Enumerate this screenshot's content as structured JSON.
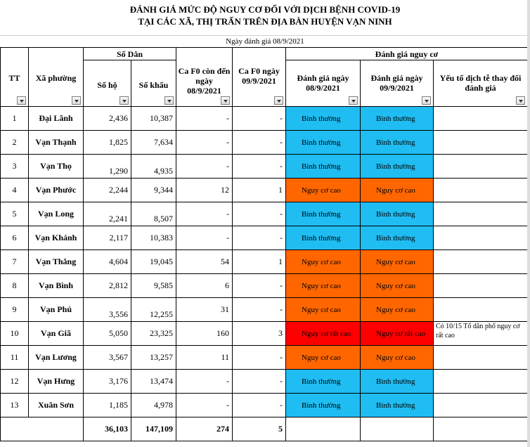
{
  "title_line1": "ĐÁNH GIÁ MỨC ĐỘ NGUY CƠ ĐỐI VỚI DỊCH BỆNH COVID-19",
  "title_line2": "TẠI CÁC XÃ, THỊ TRẤN TRÊN ĐỊA BÀN HUYỆN VẠN NINH",
  "assessment_date": "Ngày đánh giá 08/9/2021",
  "headers": {
    "tt": "TT",
    "xa_phuong": "Xã phường",
    "so_dan": "Số Dân",
    "so_ho": "Số hộ",
    "so_khau": "Số khẩu",
    "ca_f0_con_den": "Ca F0 còn đến ngày 08/9/2021",
    "ca_f0_ngay": "Ca F0 ngày 09/9/2021",
    "danh_gia_nguy_co": "Đánh giá nguy cơ",
    "danh_gia_0809": "Đánh giá ngày 08/9/2021",
    "danh_gia_0909": "Đánh giá ngày 09/9/2021",
    "yeu_to": "Yếu tố dịch tễ thay đổi đánh giá"
  },
  "colors": {
    "binh_thuong": "#1fbdf2",
    "nguy_co_cao": "#ff6600",
    "nguy_co_rat_cao": "#ff0000"
  },
  "rows": [
    {
      "tt": "1",
      "name": "Đại Lãnh",
      "ho": "2,436",
      "khau": "10,387",
      "f0_con": "-",
      "f0_ngay": "-",
      "d1": "Bình thường",
      "d2": "Bình thường",
      "level1": "binh_thuong",
      "level2": "binh_thuong",
      "note": ""
    },
    {
      "tt": "2",
      "name": "Vạn Thạnh",
      "ho": "1,825",
      "khau": "7,634",
      "f0_con": "-",
      "f0_ngay": "-",
      "d1": "Bình thường",
      "d2": "Bình thường",
      "level1": "binh_thuong",
      "level2": "binh_thuong",
      "note": ""
    },
    {
      "tt": "3",
      "name": "Vạn Thọ",
      "ho": "1,290",
      "khau": "4,935",
      "f0_con": "-",
      "f0_ngay": "-",
      "d1": "Bình thường",
      "d2": "Bình thường",
      "level1": "binh_thuong",
      "level2": "binh_thuong",
      "note": ""
    },
    {
      "tt": "4",
      "name": "Vạn Phước",
      "ho": "2,244",
      "khau": "9,344",
      "f0_con": "12",
      "f0_ngay": "1",
      "d1": "Nguy cơ cao",
      "d2": "Nguy cơ cao",
      "level1": "nguy_co_cao",
      "level2": "nguy_co_cao",
      "note": ""
    },
    {
      "tt": "5",
      "name": "Vạn Long",
      "ho": "2,241",
      "khau": "8,507",
      "f0_con": "-",
      "f0_ngay": "-",
      "d1": "Bình thường",
      "d2": "Bình thường",
      "level1": "binh_thuong",
      "level2": "binh_thuong",
      "note": ""
    },
    {
      "tt": "6",
      "name": "Vạn Khánh",
      "ho": "2,117",
      "khau": "10,383",
      "f0_con": "-",
      "f0_ngay": "-",
      "d1": "Bình thường",
      "d2": "Bình thường",
      "level1": "binh_thuong",
      "level2": "binh_thuong",
      "note": ""
    },
    {
      "tt": "7",
      "name": "Vạn Thắng",
      "ho": "4,604",
      "khau": "19,045",
      "f0_con": "54",
      "f0_ngay": "1",
      "d1": "Nguy cơ cao",
      "d2": "Nguy cơ cao",
      "level1": "nguy_co_cao",
      "level2": "nguy_co_cao",
      "note": ""
    },
    {
      "tt": "8",
      "name": "Vạn Bình",
      "ho": "2,812",
      "khau": "9,585",
      "f0_con": "6",
      "f0_ngay": "-",
      "d1": "Nguy cơ cao",
      "d2": "Nguy cơ cao",
      "level1": "nguy_co_cao",
      "level2": "nguy_co_cao",
      "note": ""
    },
    {
      "tt": "9",
      "name": "Vạn Phú",
      "ho": "3,556",
      "khau": "12,255",
      "f0_con": "31",
      "f0_ngay": "-",
      "d1": "Nguy cơ cao",
      "d2": "Nguy cơ cao",
      "level1": "nguy_co_cao",
      "level2": "nguy_co_cao",
      "note": ""
    },
    {
      "tt": "10",
      "name": "Vạn Giã",
      "ho": "5,050",
      "khau": "23,325",
      "f0_con": "160",
      "f0_ngay": "3",
      "d1": "Nguy cơ rất cao",
      "d2": "Nguy cơ rất cao",
      "level1": "nguy_co_rat_cao",
      "level2": "nguy_co_rat_cao",
      "note": "Có 10/15 Tổ dân phố nguy cơ rất cao"
    },
    {
      "tt": "11",
      "name": "Vạn Lương",
      "ho": "3,567",
      "khau": "13,257",
      "f0_con": "11",
      "f0_ngay": "-",
      "d1": "Nguy cơ cao",
      "d2": "Nguy cơ cao",
      "level1": "nguy_co_cao",
      "level2": "nguy_co_cao",
      "note": ""
    },
    {
      "tt": "12",
      "name": "Vạn Hưng",
      "ho": "3,176",
      "khau": "13,474",
      "f0_con": "-",
      "f0_ngay": "-",
      "d1": "Bình thường",
      "d2": "Bình thường",
      "level1": "binh_thuong",
      "level2": "binh_thuong",
      "note": ""
    },
    {
      "tt": "13",
      "name": "Xuân Sơn",
      "ho": "1,185",
      "khau": "4,978",
      "f0_con": "-",
      "f0_ngay": "-",
      "d1": "Bình thường",
      "d2": "Bình thường",
      "level1": "binh_thuong",
      "level2": "binh_thuong",
      "note": ""
    }
  ],
  "totals": {
    "ho": "36,103",
    "khau": "147,109",
    "f0_con": "274",
    "f0_ngay": "5"
  }
}
